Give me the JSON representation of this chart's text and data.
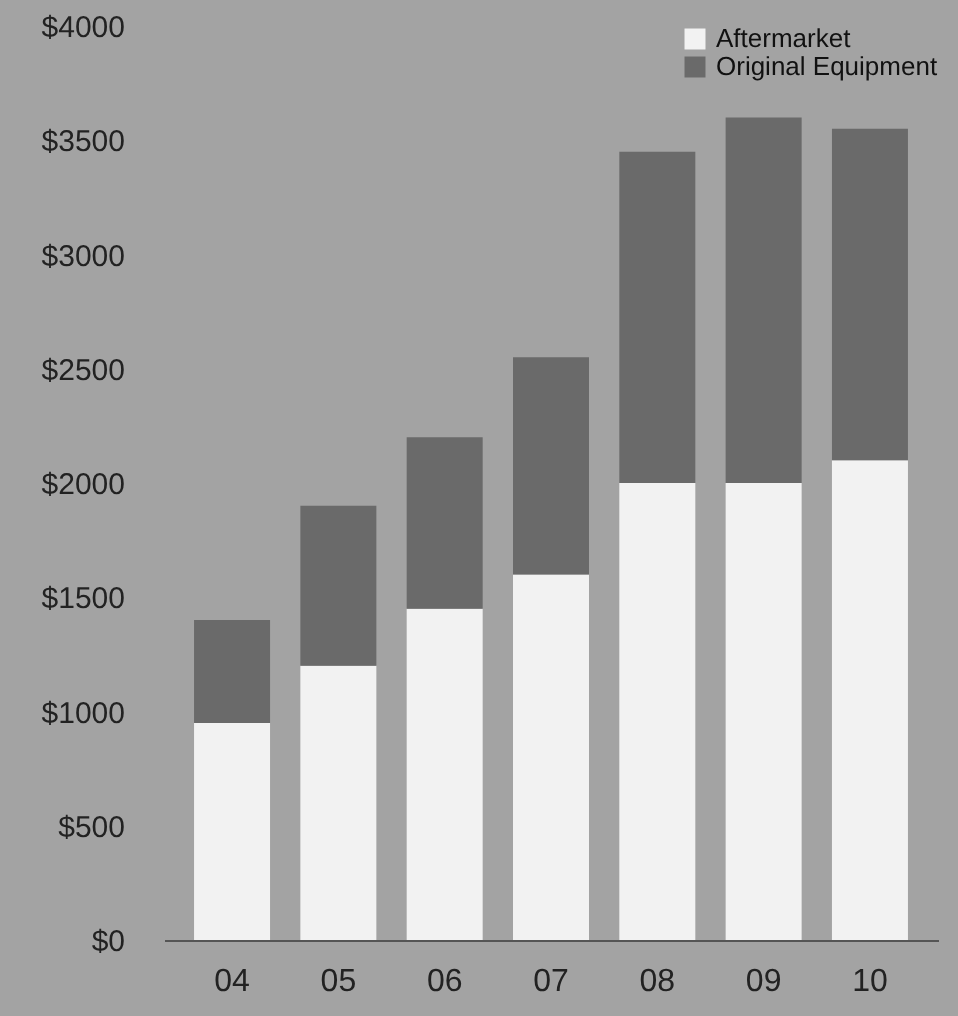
{
  "chart_data": {
    "type": "bar",
    "stacked": true,
    "categories": [
      "04",
      "05",
      "06",
      "07",
      "08",
      "09",
      "10"
    ],
    "series": [
      {
        "name": "Aftermarket",
        "color": "#f2f2f2",
        "values": [
          950,
          1200,
          1450,
          1600,
          2000,
          2000,
          2100
        ]
      },
      {
        "name": "Original Equipment",
        "color": "#6a6a6a",
        "values": [
          450,
          700,
          750,
          950,
          1450,
          1600,
          1450
        ]
      }
    ],
    "ylim": [
      0,
      4000
    ],
    "yticks": [
      {
        "value": 0,
        "label": "$0"
      },
      {
        "value": 500,
        "label": "$500"
      },
      {
        "value": 1000,
        "label": "$1000"
      },
      {
        "value": 1500,
        "label": "$1500"
      },
      {
        "value": 2000,
        "label": "$2000"
      },
      {
        "value": 2500,
        "label": "$2500"
      },
      {
        "value": 3000,
        "label": "$3000"
      },
      {
        "value": 3500,
        "label": "$3500"
      },
      {
        "value": 4000,
        "label": "$4000"
      }
    ],
    "grid": false,
    "legend": "top right"
  }
}
